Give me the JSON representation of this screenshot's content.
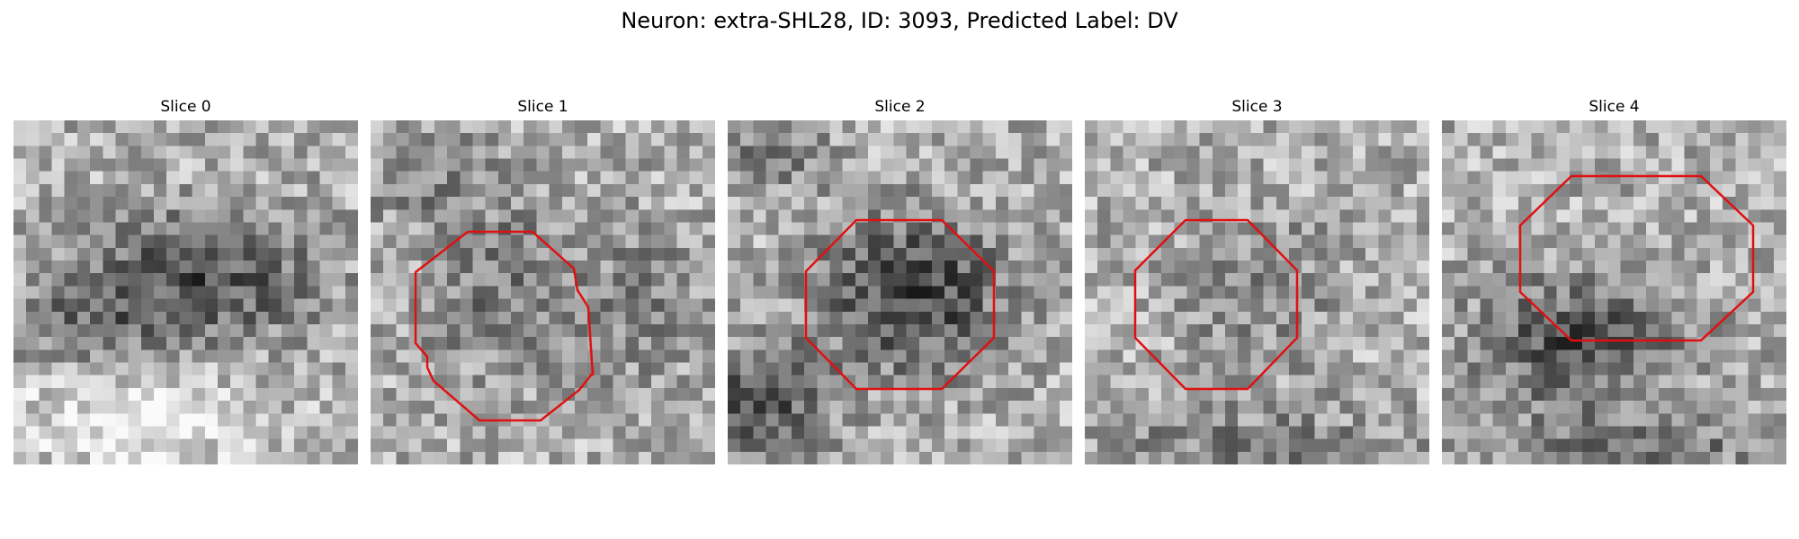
{
  "figure": {
    "title": "Neuron: extra-SHL28, ID: 3093, Predicted Label: DV"
  },
  "roi_color": "#e01010",
  "panels": [
    {
      "title": "Slice 0",
      "has_roi": false
    },
    {
      "title": "Slice 1",
      "has_roi": true
    },
    {
      "title": "Slice 2",
      "has_roi": true
    },
    {
      "title": "Slice 3",
      "has_roi": true
    },
    {
      "title": "Slice 4",
      "has_roi": true
    }
  ]
}
